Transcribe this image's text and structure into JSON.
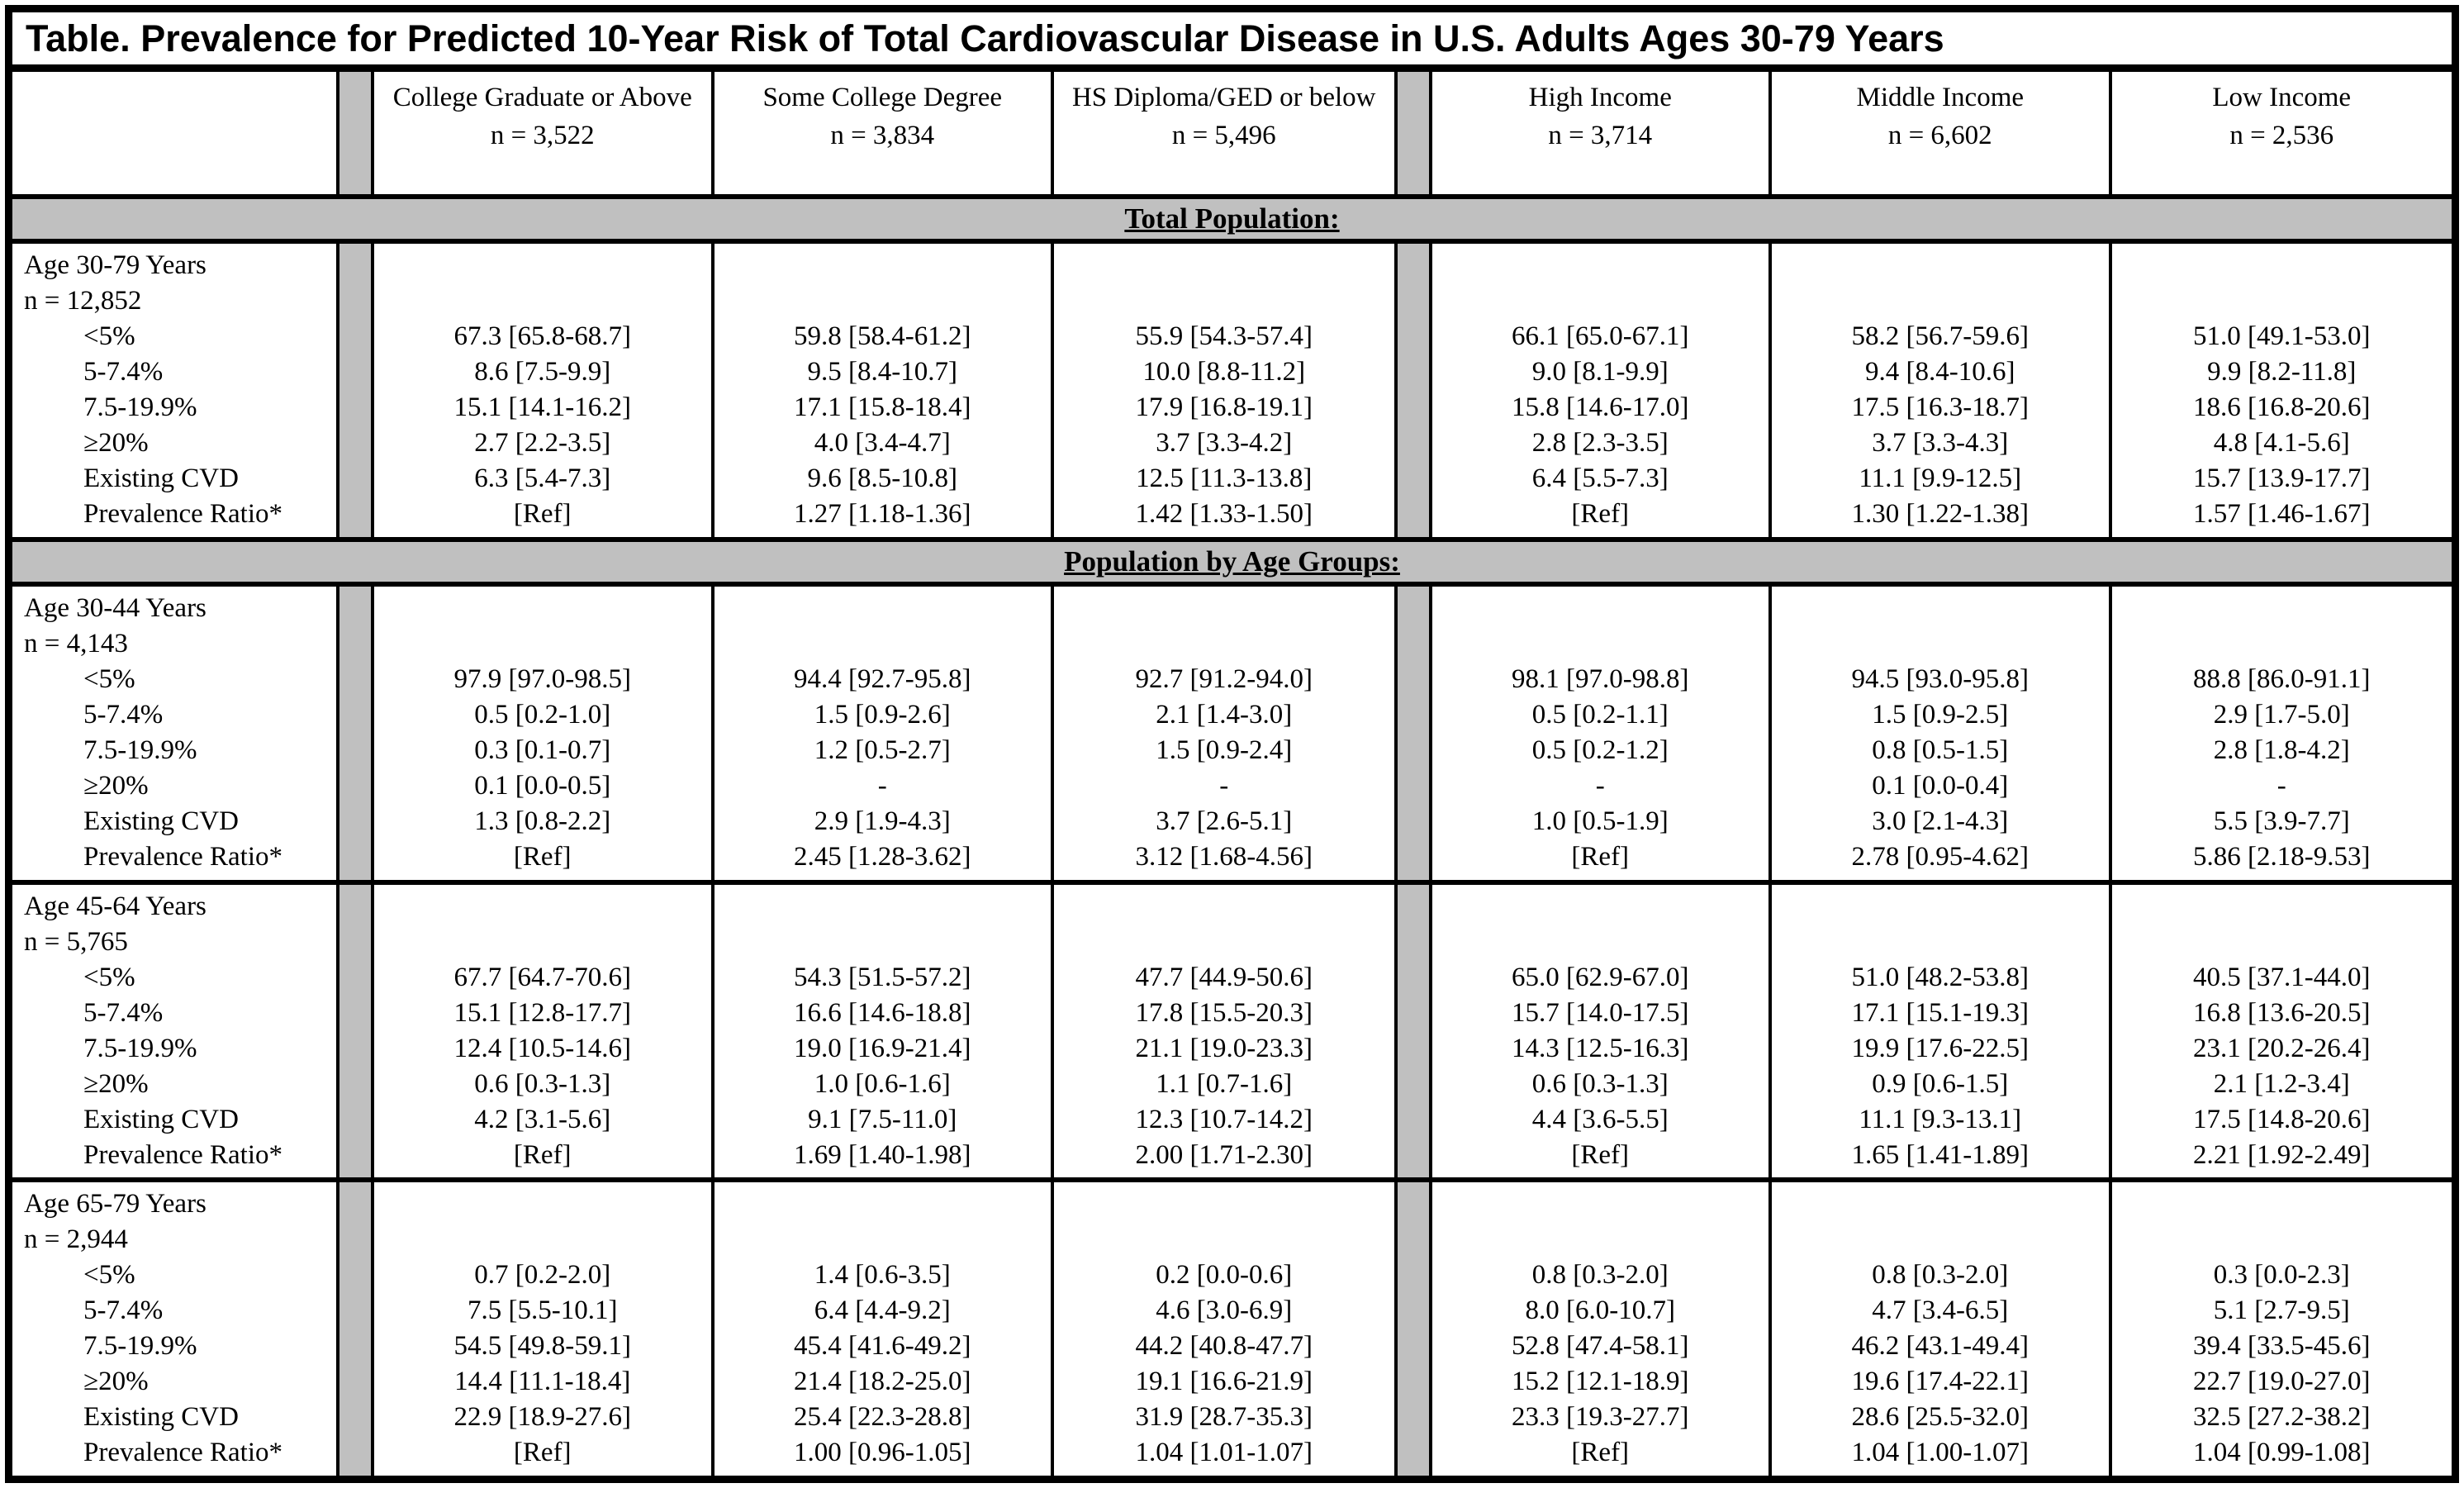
{
  "title": "Table. Prevalence for Predicted 10-Year Risk of Total Cardiovascular Disease in U.S. Adults Ages 30-79 Years",
  "colors": {
    "band_gray": "#c0c0c0",
    "border_black": "#000000"
  },
  "header": {
    "cols": [
      {
        "label": "College Graduate or Above",
        "n": "n = 3,522"
      },
      {
        "label": "Some College Degree",
        "n": "n = 3,834"
      },
      {
        "label": "HS Diploma/GED or below",
        "n": "n = 5,496"
      },
      {
        "label": "High Income",
        "n": "n = 3,714"
      },
      {
        "label": "Middle Income",
        "n": "n = 6,602"
      },
      {
        "label": "Low Income",
        "n": "n = 2,536"
      }
    ]
  },
  "bands": [
    "Total Population:",
    "Population by Age Groups:"
  ],
  "row_labels": [
    "<5%",
    "5-7.4%",
    "7.5-19.9%",
    "≥20%",
    "Existing CVD",
    "Prevalence Ratio*"
  ],
  "groups": [
    {
      "age": "Age 30-79 Years",
      "n": "n = 12,852",
      "rows": [
        [
          "67.3 [65.8-68.7]",
          "59.8 [58.4-61.2]",
          "55.9 [54.3-57.4]",
          "66.1 [65.0-67.1]",
          "58.2 [56.7-59.6]",
          "51.0 [49.1-53.0]"
        ],
        [
          "8.6 [7.5-9.9]",
          "9.5 [8.4-10.7]",
          "10.0 [8.8-11.2]",
          "9.0 [8.1-9.9]",
          "9.4 [8.4-10.6]",
          "9.9 [8.2-11.8]"
        ],
        [
          "15.1 [14.1-16.2]",
          "17.1 [15.8-18.4]",
          "17.9 [16.8-19.1]",
          "15.8 [14.6-17.0]",
          "17.5 [16.3-18.7]",
          "18.6 [16.8-20.6]"
        ],
        [
          "2.7 [2.2-3.5]",
          "4.0 [3.4-4.7]",
          "3.7 [3.3-4.2]",
          "2.8 [2.3-3.5]",
          "3.7 [3.3-4.3]",
          "4.8 [4.1-5.6]"
        ],
        [
          "6.3 [5.4-7.3]",
          "9.6 [8.5-10.8]",
          "12.5 [11.3-13.8]",
          "6.4 [5.5-7.3]",
          "11.1 [9.9-12.5]",
          "15.7 [13.9-17.7]"
        ],
        [
          "[Ref]",
          "1.27 [1.18-1.36]",
          "1.42 [1.33-1.50]",
          "[Ref]",
          "1.30 [1.22-1.38]",
          "1.57 [1.46-1.67]"
        ]
      ]
    },
    {
      "age": "Age 30-44 Years",
      "n": "n = 4,143",
      "rows": [
        [
          "97.9 [97.0-98.5]",
          "94.4 [92.7-95.8]",
          "92.7 [91.2-94.0]",
          "98.1 [97.0-98.8]",
          "94.5 [93.0-95.8]",
          "88.8 [86.0-91.1]"
        ],
        [
          "0.5 [0.2-1.0]",
          "1.5 [0.9-2.6]",
          "2.1 [1.4-3.0]",
          "0.5 [0.2-1.1]",
          "1.5 [0.9-2.5]",
          "2.9 [1.7-5.0]"
        ],
        [
          "0.3 [0.1-0.7]",
          "1.2 [0.5-2.7]",
          "1.5 [0.9-2.4]",
          "0.5 [0.2-1.2]",
          "0.8 [0.5-1.5]",
          "2.8 [1.8-4.2]"
        ],
        [
          "0.1 [0.0-0.5]",
          "-",
          "-",
          "-",
          "0.1 [0.0-0.4]",
          "-"
        ],
        [
          "1.3 [0.8-2.2]",
          "2.9 [1.9-4.3]",
          "3.7 [2.6-5.1]",
          "1.0 [0.5-1.9]",
          "3.0 [2.1-4.3]",
          "5.5 [3.9-7.7]"
        ],
        [
          "[Ref]",
          "2.45 [1.28-3.62]",
          "3.12 [1.68-4.56]",
          "[Ref]",
          "2.78 [0.95-4.62]",
          "5.86 [2.18-9.53]"
        ]
      ]
    },
    {
      "age": "Age 45-64 Years",
      "n": "n = 5,765",
      "rows": [
        [
          "67.7 [64.7-70.6]",
          "54.3 [51.5-57.2]",
          "47.7 [44.9-50.6]",
          "65.0 [62.9-67.0]",
          "51.0 [48.2-53.8]",
          "40.5 [37.1-44.0]"
        ],
        [
          "15.1 [12.8-17.7]",
          "16.6 [14.6-18.8]",
          "17.8 [15.5-20.3]",
          "15.7 [14.0-17.5]",
          "17.1 [15.1-19.3]",
          "16.8 [13.6-20.5]"
        ],
        [
          "12.4 [10.5-14.6]",
          "19.0 [16.9-21.4]",
          "21.1 [19.0-23.3]",
          "14.3 [12.5-16.3]",
          "19.9 [17.6-22.5]",
          "23.1 [20.2-26.4]"
        ],
        [
          "0.6 [0.3-1.3]",
          "1.0 [0.6-1.6]",
          "1.1 [0.7-1.6]",
          "0.6 [0.3-1.3]",
          "0.9 [0.6-1.5]",
          "2.1 [1.2-3.4]"
        ],
        [
          "4.2 [3.1-5.6]",
          "9.1 [7.5-11.0]",
          "12.3 [10.7-14.2]",
          "4.4 [3.6-5.5]",
          "11.1 [9.3-13.1]",
          "17.5 [14.8-20.6]"
        ],
        [
          "[Ref]",
          "1.69 [1.40-1.98]",
          "2.00 [1.71-2.30]",
          "[Ref]",
          "1.65 [1.41-1.89]",
          "2.21 [1.92-2.49]"
        ]
      ]
    },
    {
      "age": "Age 65-79 Years",
      "n": "n = 2,944",
      "rows": [
        [
          "0.7 [0.2-2.0]",
          "1.4 [0.6-3.5]",
          "0.2 [0.0-0.6]",
          "0.8 [0.3-2.0]",
          "0.8 [0.3-2.0]",
          "0.3 [0.0-2.3]"
        ],
        [
          "7.5 [5.5-10.1]",
          "6.4 [4.4-9.2]",
          "4.6 [3.0-6.9]",
          "8.0 [6.0-10.7]",
          "4.7 [3.4-6.5]",
          "5.1 [2.7-9.5]"
        ],
        [
          "54.5 [49.8-59.1]",
          "45.4 [41.6-49.2]",
          "44.2 [40.8-47.7]",
          "52.8 [47.4-58.1]",
          "46.2 [43.1-49.4]",
          "39.4 [33.5-45.6]"
        ],
        [
          "14.4 [11.1-18.4]",
          "21.4 [18.2-25.0]",
          "19.1 [16.6-21.9]",
          "15.2 [12.1-18.9]",
          "19.6 [17.4-22.1]",
          "22.7 [19.0-27.0]"
        ],
        [
          "22.9 [18.9-27.6]",
          "25.4 [22.3-28.8]",
          "31.9 [28.7-35.3]",
          "23.3 [19.3-27.7]",
          "28.6 [25.5-32.0]",
          "32.5 [27.2-38.2]"
        ],
        [
          "[Ref]",
          "1.00 [0.96-1.05]",
          "1.04 [1.01-1.07]",
          "[Ref]",
          "1.04 [1.00-1.07]",
          "1.04 [0.99-1.08]"
        ]
      ]
    }
  ]
}
